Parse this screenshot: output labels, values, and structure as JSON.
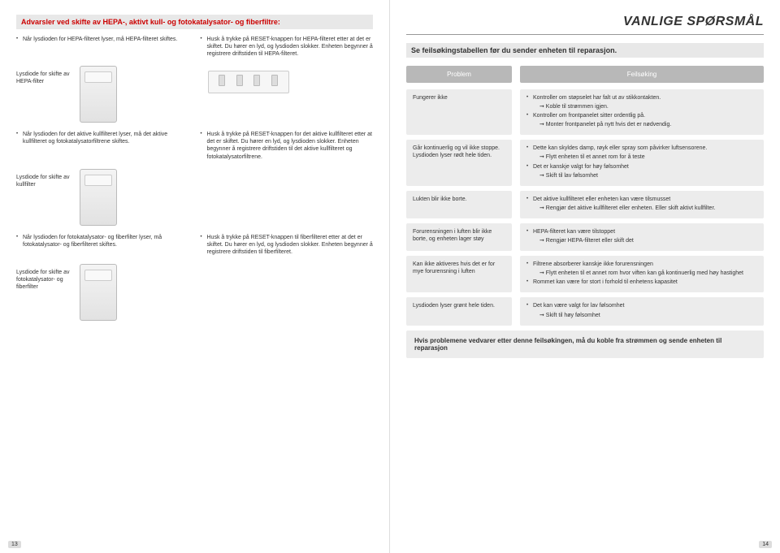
{
  "doc_title": "VANLIGE SPØRSMÅL",
  "warn_heading": "Advarsler ved skifte av HEPA-, aktivt kull- og fotokatalysator- og fiberfiltre:",
  "feiltab_heading": "Se feilsøkingstabellen før du sender enheten til reparasjon.",
  "left": {
    "sec1": {
      "b1": "Når lysdioden for HEPA-filteret lyser, må HEPA-filteret skiftes.",
      "b2": "Husk å trykke på RESET-knappen for HEPA-filteret etter at det er skiftet. Du hører en lyd, og lysdioden slokker. Enheten begynner å registrere driftstiden til HEPA-filteret.",
      "label": "Lysdiode for skifte av HEPA-filter"
    },
    "sec2": {
      "b1": "Når lysdioden for det aktive kullfilteret lyser, må det aktive kullfilteret og fotokatalysatorfiltrene skiftes.",
      "b2": "Husk å trykke på RESET-knappen for det aktive kullfilteret etter at det er skiftet. Du hører en lyd, og lysdioden slokker. Enheten begynner å registrere driftstiden til det aktive kullfilteret og fotokatalysatorfiltrene.",
      "label": "Lysdiode for skifte av kullfilter"
    },
    "sec3": {
      "b1": "Når lysdioden for fotokatalysator- og fiberfilter lyser, må fotokatalysator- og fiberfilteret skiftes.",
      "b2": "Husk å trykke på RESET-knappen til fiberfilteret etter at det er skiftet. Du hører en lyd, og lysdioden slokker. Enheten begynner å registrere driftstiden til fiberfilteret.",
      "label": "Lysdiode for skifte av fotokatalysator- og fiberfilter"
    }
  },
  "right": {
    "h_problem": "Problem",
    "h_fix": "Feilsøking",
    "rows": [
      {
        "p": "Fungerer ikke",
        "fix": [
          "Kontroller om støpselet har falt ut av stikkontakten.",
          "➞ Koble til strømmen igjen.",
          "Kontroller om frontpanelet sitter ordentlig på.",
          "➞ Monter frontpanelet på nytt hvis det er nødvendig."
        ]
      },
      {
        "p": "Går kontinuerlig og vil ikke stoppe. Lysdioden lyser rødt hele tiden.",
        "fix": [
          "Dette kan skyldes damp, røyk eller spray som påvirker luftsensorene.",
          "➞ Flytt enheten til et annet rom for å teste",
          "Det er kanskje valgt for høy følsomhet",
          "➞ Skift til lav følsomhet"
        ]
      },
      {
        "p": "Lukten blir ikke borte.",
        "fix": [
          "Det aktive kullfilteret eller enheten kan være tilsmusset",
          "➞ Rengjør det aktive kullfilteret eller enheten. Eller skift aktivt kullfilter."
        ]
      },
      {
        "p": "Forurensningen i luften blir ikke borte, og enheten lager støy",
        "fix": [
          "HEPA-filteret kan være tilstoppet",
          "➞ Rengjør HEPA-filteret eller skift det"
        ]
      },
      {
        "p": "Kan ikke aktiveres hvis det er for mye forurensning i luften",
        "fix": [
          "Filtrene absorberer kanskje ikke forurensningen",
          "➞ Flytt enheten til et annet rom hvor viften kan gå kontinuerlig med høy hastighet",
          "Rommet kan være for stort i forhold til enhetens kapasitet"
        ]
      },
      {
        "p": "Lysdioden lyser grønt hele tiden.",
        "fix": [
          "Det kan være valgt for lav følsomhet",
          "➞ Skift til høy følsomhet"
        ]
      }
    ],
    "foot": "Hvis problemene vedvarer etter denne feilsøkingen, må du koble fra strømmen og sende enheten til reparasjon"
  },
  "pg_left": "13",
  "pg_right": "14",
  "colors": {
    "warn_text": "#c00000",
    "bar_bg": "#e8e8e8",
    "header_cell_bg": "#b8b8b8",
    "cell_bg": "#ececec"
  }
}
